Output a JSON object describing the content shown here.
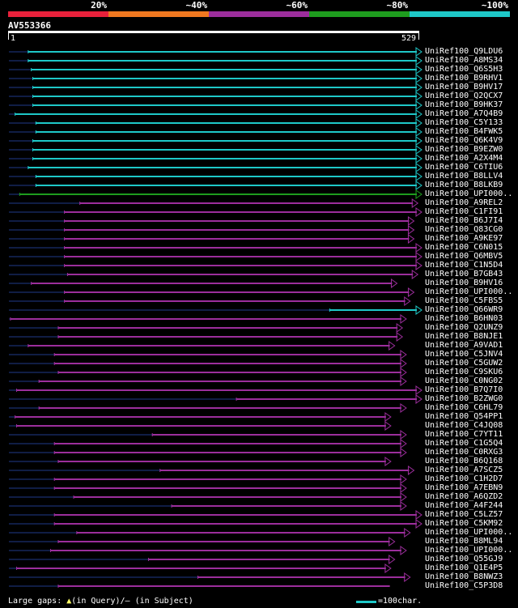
{
  "legend": [
    {
      "label": "20%",
      "color": "#e8213b"
    },
    {
      "label": "~40%",
      "color": "#f07820"
    },
    {
      "label": "~60%",
      "color": "#9c2e9c"
    },
    {
      "label": "~80%",
      "color": "#1e9c1e"
    },
    {
      "label": "~100%",
      "color": "#1ec8c8"
    }
  ],
  "query": {
    "name": "AV553366",
    "start": "1",
    "end": "529",
    "length": 529
  },
  "colors": {
    "cyan": "#1ec8c8",
    "green": "#1e9c1e",
    "purple": "#9c2e9c",
    "gap": "#1f3a8a",
    "insertion": "#ffff66"
  },
  "hits": [
    {
      "name": "UniRef100_Q9LDU6",
      "color": "cyan",
      "start": 25,
      "end": 529,
      "arrow": true
    },
    {
      "name": "UniRef100_A8MS34",
      "color": "cyan",
      "start": 25,
      "end": 529,
      "arrow": true
    },
    {
      "name": "UniRef100_Q6S5H3",
      "color": "cyan",
      "start": 29,
      "end": 529,
      "arrow": true
    },
    {
      "name": "UniRef100_B9RHV1",
      "color": "cyan",
      "start": 31,
      "end": 529,
      "arrow": true
    },
    {
      "name": "UniRef100_B9HV17",
      "color": "cyan",
      "start": 31,
      "end": 529,
      "arrow": true
    },
    {
      "name": "UniRef100_Q2QCX7",
      "color": "cyan",
      "start": 31,
      "end": 529,
      "arrow": true
    },
    {
      "name": "UniRef100_B9HK37",
      "color": "cyan",
      "start": 31,
      "end": 529,
      "arrow": true
    },
    {
      "name": "UniRef100_A7Q4B9",
      "color": "cyan",
      "start": 8,
      "end": 529,
      "arrow": true
    },
    {
      "name": "UniRef100_C5Y133",
      "color": "cyan",
      "start": 35,
      "end": 529,
      "arrow": true
    },
    {
      "name": "UniRef100_B4FWK5",
      "color": "cyan",
      "start": 35,
      "end": 529,
      "arrow": true
    },
    {
      "name": "UniRef100_Q6K4V9",
      "color": "cyan",
      "start": 31,
      "end": 529,
      "arrow": true
    },
    {
      "name": "UniRef100_B9EZW0",
      "color": "cyan",
      "start": 31,
      "end": 529,
      "arrow": true
    },
    {
      "name": "UniRef100_A2X4M4",
      "color": "cyan",
      "start": 31,
      "end": 529,
      "arrow": true
    },
    {
      "name": "UniRef100_C6TIU6",
      "color": "cyan",
      "start": 25,
      "end": 529,
      "arrow": true
    },
    {
      "name": "UniRef100_B8LLV4",
      "color": "cyan",
      "start": 35,
      "end": 529,
      "arrow": true
    },
    {
      "name": "UniRef100_B8LKB9",
      "color": "cyan",
      "start": 35,
      "end": 529,
      "arrow": true
    },
    {
      "name": "UniRef100_UPI000..",
      "color": "green",
      "start": 14,
      "end": 529,
      "arrow": true
    },
    {
      "name": "UniRef100_A9REL2",
      "color": "purple",
      "start": 92,
      "end": 524,
      "arrow": true
    },
    {
      "name": "UniRef100_C1FI91",
      "color": "purple",
      "start": 72,
      "end": 529,
      "arrow": true
    },
    {
      "name": "UniRef100_B6J7I4",
      "color": "purple",
      "start": 72,
      "end": 519,
      "arrow": true
    },
    {
      "name": "UniRef100_Q83CG0",
      "color": "purple",
      "start": 72,
      "end": 519,
      "arrow": true
    },
    {
      "name": "UniRef100_A9KE97",
      "color": "purple",
      "start": 72,
      "end": 519,
      "arrow": true
    },
    {
      "name": "UniRef100_C6N015",
      "color": "purple",
      "start": 72,
      "end": 529,
      "arrow": true
    },
    {
      "name": "UniRef100_Q6MBV5",
      "color": "purple",
      "start": 72,
      "end": 529,
      "arrow": true
    },
    {
      "name": "UniRef100_C1N5D4",
      "color": "purple",
      "start": 72,
      "end": 529,
      "arrow": true
    },
    {
      "name": "UniRef100_B7GB43",
      "color": "purple",
      "start": 76,
      "end": 524,
      "arrow": true
    },
    {
      "name": "UniRef100_B9HV16",
      "color": "purple",
      "start": 29,
      "end": 497,
      "arrow": true
    },
    {
      "name": "UniRef100_UPI000..",
      "color": "purple",
      "start": 72,
      "end": 519,
      "arrow": true
    },
    {
      "name": "UniRef100_C5FBS5",
      "color": "purple",
      "start": 72,
      "end": 514,
      "arrow": true
    },
    {
      "name": "UniRef100_Q66WR9",
      "color": "cyan",
      "start": 416,
      "end": 529,
      "arrow": true
    },
    {
      "name": "UniRef100_B6HN03",
      "color": "purple",
      "start": 2,
      "end": 509,
      "arrow": true
    },
    {
      "name": "UniRef100_Q2UNZ9",
      "color": "purple",
      "start": 64,
      "end": 504,
      "arrow": true
    },
    {
      "name": "UniRef100_B8NJE1",
      "color": "purple",
      "start": 64,
      "end": 504,
      "arrow": true
    },
    {
      "name": "UniRef100_A9VAD1",
      "color": "purple",
      "start": 25,
      "end": 494,
      "arrow": true
    },
    {
      "name": "UniRef100_C5JNV4",
      "color": "purple",
      "start": 59,
      "end": 509,
      "arrow": true
    },
    {
      "name": "UniRef100_C5GUW2",
      "color": "purple",
      "start": 59,
      "end": 509,
      "arrow": true
    },
    {
      "name": "UniRef100_C9SKU6",
      "color": "purple",
      "start": 64,
      "end": 509,
      "arrow": true
    },
    {
      "name": "UniRef100_C0NG02",
      "color": "purple",
      "start": 39,
      "end": 509,
      "arrow": true
    },
    {
      "name": "UniRef100_B7Q7I0",
      "color": "purple",
      "start": 10,
      "end": 529,
      "arrow": true
    },
    {
      "name": "UniRef100_B2ZWG0",
      "color": "purple",
      "start": 295,
      "end": 529,
      "arrow": true
    },
    {
      "name": "UniRef100_C6HL79",
      "color": "purple",
      "start": 39,
      "end": 509,
      "arrow": true
    },
    {
      "name": "UniRef100_Q54PP1",
      "color": "purple",
      "start": 8,
      "end": 489,
      "arrow": true
    },
    {
      "name": "UniRef100_C4JQ08",
      "color": "purple",
      "start": 10,
      "end": 489,
      "arrow": true
    },
    {
      "name": "UniRef100_C7YT11",
      "color": "purple",
      "start": 186,
      "end": 509,
      "arrow": true
    },
    {
      "name": "UniRef100_C1G5Q4",
      "color": "purple",
      "start": 59,
      "end": 509,
      "arrow": true
    },
    {
      "name": "UniRef100_C0RXG3",
      "color": "purple",
      "start": 59,
      "end": 509,
      "arrow": true
    },
    {
      "name": "UniRef100_B6Q168",
      "color": "purple",
      "start": 64,
      "end": 489,
      "arrow": true
    },
    {
      "name": "UniRef100_A7SCZ5",
      "color": "purple",
      "start": 196,
      "end": 519,
      "arrow": true
    },
    {
      "name": "UniRef100_C1H2D7",
      "color": "purple",
      "start": 59,
      "end": 509,
      "arrow": true
    },
    {
      "name": "UniRef100_A7EBN9",
      "color": "purple",
      "start": 59,
      "end": 509,
      "arrow": true
    },
    {
      "name": "UniRef100_A6QZD2",
      "color": "purple",
      "start": 84,
      "end": 509,
      "arrow": true
    },
    {
      "name": "UniRef100_A4F244",
      "color": "purple",
      "start": 211,
      "end": 509,
      "arrow": true
    },
    {
      "name": "UniRef100_C5LZ57",
      "color": "purple",
      "start": 59,
      "end": 529,
      "arrow": true
    },
    {
      "name": "UniRef100_C5KM92",
      "color": "purple",
      "start": 59,
      "end": 529,
      "arrow": true
    },
    {
      "name": "UniRef100_UPI000..",
      "color": "purple",
      "start": 88,
      "end": 514,
      "arrow": true
    },
    {
      "name": "UniRef100_B8ML94",
      "color": "purple",
      "start": 64,
      "end": 494,
      "arrow": true
    },
    {
      "name": "UniRef100_UPI000..",
      "color": "purple",
      "start": 54,
      "end": 509,
      "arrow": true
    },
    {
      "name": "UniRef100_Q55GJ9",
      "color": "purple",
      "start": 181,
      "end": 494,
      "arrow": true
    },
    {
      "name": "UniRef100_Q1E4P5",
      "color": "purple",
      "start": 10,
      "end": 489,
      "arrow": true
    },
    {
      "name": "UniRef100_B8NWZ3",
      "color": "purple",
      "start": 245,
      "end": 514,
      "arrow": true
    },
    {
      "name": "UniRef100_C5P3D8",
      "color": "purple",
      "start": 64,
      "end": 494,
      "arrow": false
    }
  ],
  "footer": {
    "gaps_label": "Large gaps:",
    "in_query": "(in Query)/– (in Subject)",
    "scale_label": "=100char."
  }
}
